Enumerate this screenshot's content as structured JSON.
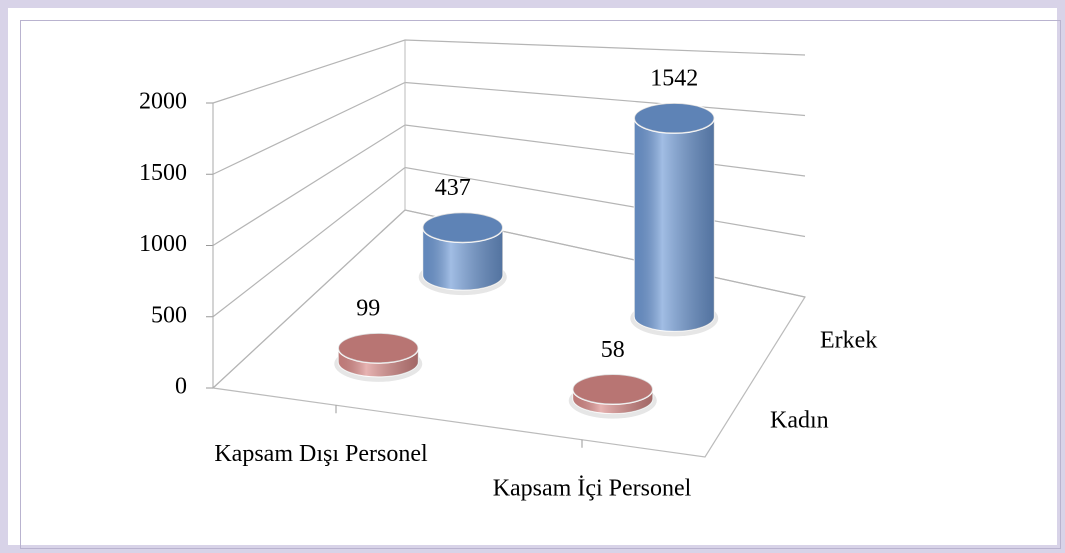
{
  "chart_data": {
    "type": "bar3d-cylinder",
    "categories": [
      "Kapsam Dışı Personel",
      "Kapsam İçi Personel"
    ],
    "series": [
      {
        "name": "Kadın",
        "color": "#d98a88",
        "values": [
          99,
          58
        ]
      },
      {
        "name": "Erkek",
        "color": "#6f9ad6",
        "values": [
          437,
          1542
        ]
      }
    ],
    "ylim": [
      0,
      2000
    ],
    "yticks": [
      0,
      500,
      1000,
      1500,
      2000
    ],
    "grid": true
  }
}
